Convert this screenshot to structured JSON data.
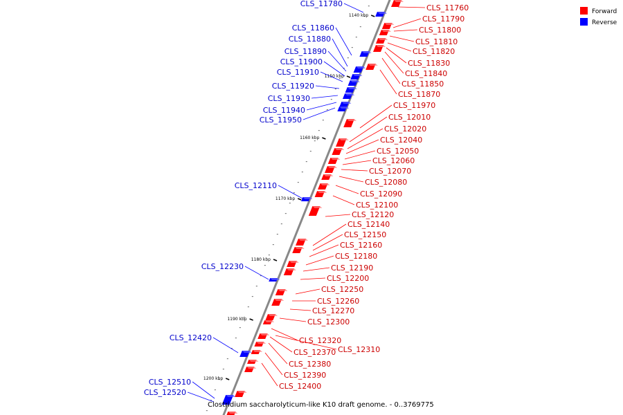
{
  "title": "Clostridium saccharolyticum-like K10 draft genome. - 0..3769775",
  "legend": [
    {
      "label": "Forward",
      "color": "#ff0000"
    },
    {
      "label": "Reverse",
      "color": "#0000ff"
    }
  ],
  "colors": {
    "forward": "#ff0000",
    "reverse": "#0000ff",
    "forward_label": "#cc0000",
    "reverse_label": "#0000cc",
    "backbone": "#888888"
  },
  "ticks": [
    "1140 kbp",
    "1150 kbp",
    "1160 kbp",
    "1170 kbp",
    "1180 kbp",
    "1190 kbp",
    "1200 kbp"
  ],
  "forward_genes": [
    "CLS_11760",
    "CLS_11790",
    "CLS_11800",
    "CLS_11810",
    "CLS_11820",
    "CLS_11830",
    "CLS_11840",
    "CLS_11850",
    "CLS_11870",
    "CLS_11970",
    "CLS_12010",
    "CLS_12020",
    "CLS_12040",
    "CLS_12050",
    "CLS_12060",
    "CLS_12070",
    "CLS_12080",
    "CLS_12090",
    "CLS_12100",
    "CLS_12120",
    "CLS_12140",
    "CLS_12150",
    "CLS_12160",
    "CLS_12180",
    "CLS_12190",
    "CLS_12200",
    "CLS_12250",
    "CLS_12260",
    "CLS_12270",
    "CLS_12300",
    "CLS_12320",
    "CLS_12310",
    "CLS_12370",
    "CLS_12380",
    "CLS_12390",
    "CLS_12400"
  ],
  "reverse_genes": [
    "CLS_11780",
    "CLS_11860",
    "CLS_11880",
    "CLS_11890",
    "CLS_11900",
    "CLS_11910",
    "CLS_11920",
    "CLS_11930",
    "CLS_11940",
    "CLS_11950",
    "CLS_12110",
    "CLS_12230",
    "CLS_12420",
    "CLS_12510",
    "CLS_12520"
  ]
}
